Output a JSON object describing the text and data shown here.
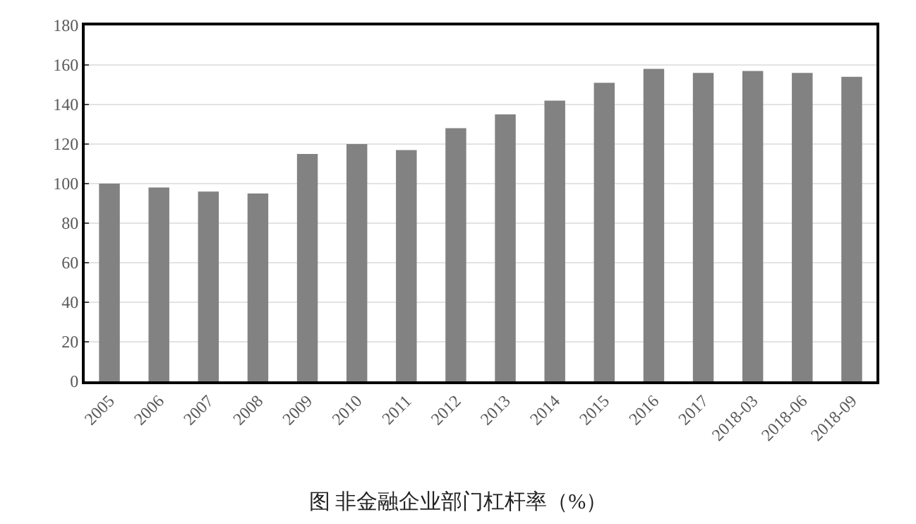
{
  "chart_data": {
    "type": "bar",
    "title": "图 非金融企业部门杠杆率（%）",
    "categories": [
      "2005",
      "2006",
      "2007",
      "2008",
      "2009",
      "2010",
      "2011",
      "2012",
      "2013",
      "2014",
      "2015",
      "2016",
      "2017",
      "2018-03",
      "2018-06",
      "2018-09"
    ],
    "values": [
      100,
      98,
      96,
      95,
      115,
      120,
      117,
      128,
      135,
      142,
      151,
      158,
      156,
      157,
      156,
      154
    ],
    "color": "#828282",
    "ylim": [
      0,
      180
    ],
    "yticks": [
      0,
      20,
      40,
      60,
      80,
      100,
      120,
      140,
      160,
      180
    ],
    "grid": "y"
  }
}
